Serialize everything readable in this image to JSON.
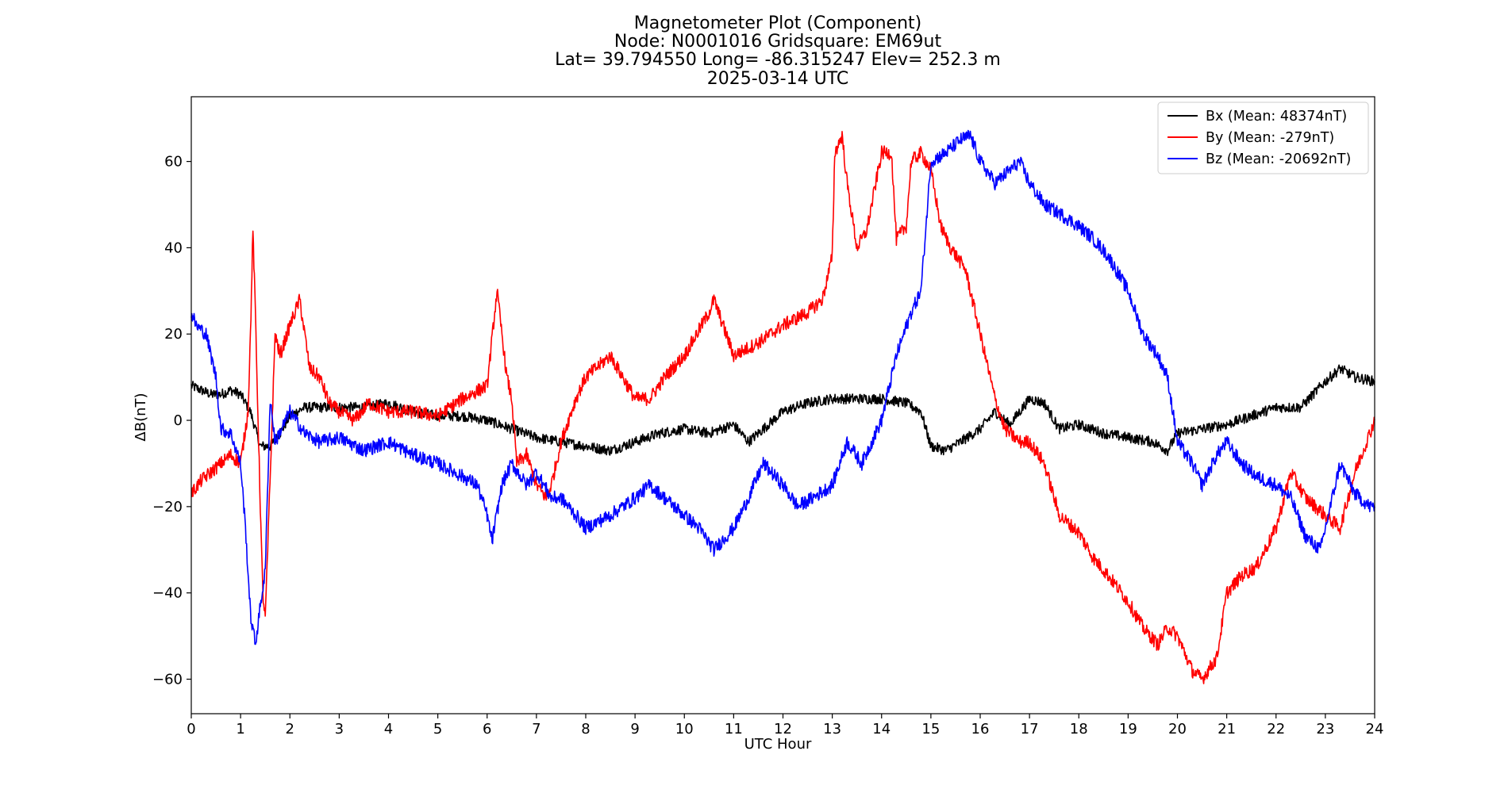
{
  "chart_data": {
    "type": "line",
    "title_lines": [
      "Magnetometer Plot (Component)",
      "Node:  N0001016     Gridsquare:  EM69ut",
      "Lat= 39.794550    Long= -86.315247    Elev= 252.3 m",
      "2025-03-14  UTC"
    ],
    "xlabel": "UTC Hour",
    "ylabel": "ΔB(nT)",
    "xlim": [
      0,
      24
    ],
    "ylim": [
      -68,
      75
    ],
    "xticks": [
      0,
      1,
      2,
      3,
      4,
      5,
      6,
      7,
      8,
      9,
      10,
      11,
      12,
      13,
      14,
      15,
      16,
      17,
      18,
      19,
      20,
      21,
      22,
      23,
      24
    ],
    "yticks": [
      -60,
      -40,
      -20,
      0,
      20,
      40,
      60
    ],
    "ytick_labels": [
      "−60",
      "−40",
      "−20",
      "0",
      "20",
      "40",
      "60"
    ],
    "grid": false,
    "legend_position": "top-right",
    "series": [
      {
        "name": "Bx (Mean: 48374nT)",
        "color": "#000000",
        "x": [
          0,
          0.2,
          0.4,
          0.6,
          0.8,
          1.0,
          1.2,
          1.4,
          1.6,
          1.8,
          2.0,
          2.3,
          2.6,
          3.0,
          3.5,
          4.0,
          4.5,
          5.0,
          5.5,
          6.0,
          6.5,
          7.0,
          7.5,
          8.0,
          8.5,
          9.0,
          9.5,
          10.0,
          10.5,
          11.0,
          11.3,
          11.6,
          12.0,
          12.5,
          13.0,
          13.5,
          14.0,
          14.5,
          14.8,
          15.0,
          15.3,
          15.6,
          16.0,
          16.3,
          16.6,
          17.0,
          17.3,
          17.6,
          18.0,
          18.5,
          19.0,
          19.5,
          19.8,
          20.0,
          20.5,
          21.0,
          21.5,
          22.0,
          22.5,
          23.0,
          23.3,
          23.6,
          24.0
        ],
        "y": [
          8,
          7,
          6,
          6,
          7,
          6,
          2,
          -6,
          -6,
          -3,
          1,
          3,
          3,
          3,
          3,
          4,
          2,
          1,
          1,
          0,
          -2,
          -4,
          -5,
          -6,
          -7,
          -5,
          -3,
          -2,
          -3,
          -1,
          -5,
          -2,
          2,
          4,
          5,
          5,
          5,
          4,
          2,
          -6,
          -7,
          -5,
          -2,
          2,
          -1,
          5,
          4,
          -2,
          -1,
          -3,
          -4,
          -5,
          -7,
          -3,
          -2,
          -1,
          1,
          3,
          3,
          9,
          12,
          10,
          9
        ]
      },
      {
        "name": "By (Mean: -279nT)",
        "color": "#ff0000",
        "x": [
          0,
          0.2,
          0.4,
          0.6,
          0.8,
          1.0,
          1.15,
          1.2,
          1.25,
          1.3,
          1.4,
          1.45,
          1.5,
          1.55,
          1.7,
          1.8,
          2.0,
          2.2,
          2.4,
          2.6,
          2.8,
          3.0,
          3.3,
          3.6,
          4.0,
          4.5,
          5.0,
          5.5,
          6.0,
          6.2,
          6.3,
          6.4,
          6.5,
          6.6,
          6.8,
          7.0,
          7.2,
          7.3,
          7.5,
          7.8,
          8.0,
          8.5,
          9.0,
          9.3,
          9.6,
          10.0,
          10.5,
          10.6,
          11.0,
          11.5,
          12.0,
          12.5,
          12.8,
          13.0,
          13.05,
          13.2,
          13.3,
          13.5,
          13.7,
          14.0,
          14.2,
          14.3,
          14.5,
          14.6,
          14.8,
          15.0,
          15.2,
          15.4,
          15.7,
          16.0,
          16.3,
          16.5,
          16.8,
          17.0,
          17.3,
          17.6,
          18.0,
          18.3,
          18.6,
          19.0,
          19.3,
          19.6,
          19.8,
          20.0,
          20.3,
          20.5,
          20.8,
          21.0,
          21.3,
          21.6,
          22.0,
          22.3,
          22.6,
          23.0,
          23.3,
          23.6,
          24.0
        ],
        "y": [
          -17,
          -14,
          -12,
          -10,
          -8,
          -10,
          2,
          20,
          44,
          25,
          -20,
          -40,
          -46,
          -30,
          20,
          15,
          22,
          28,
          12,
          10,
          4,
          2,
          0,
          4,
          2,
          2,
          1,
          5,
          8,
          30,
          20,
          10,
          5,
          -10,
          -8,
          -15,
          -18,
          -15,
          -5,
          5,
          10,
          15,
          5,
          5,
          10,
          15,
          25,
          28,
          15,
          18,
          22,
          25,
          28,
          38,
          62,
          66,
          55,
          40,
          44,
          62,
          62,
          42,
          45,
          60,
          62,
          58,
          45,
          40,
          35,
          20,
          5,
          -2,
          -5,
          -5,
          -10,
          -22,
          -26,
          -32,
          -36,
          -42,
          -48,
          -52,
          -48,
          -50,
          -58,
          -60,
          -55,
          -40,
          -36,
          -34,
          -25,
          -12,
          -18,
          -22,
          -25,
          -12,
          0
        ]
      },
      {
        "name": "Bz (Mean: -20692nT)",
        "color": "#0000ff",
        "x": [
          0,
          0.1,
          0.3,
          0.5,
          0.6,
          0.8,
          1.0,
          1.1,
          1.2,
          1.3,
          1.4,
          1.5,
          1.6,
          1.7,
          2.0,
          2.3,
          2.6,
          3.0,
          3.5,
          4.0,
          4.5,
          5.0,
          5.5,
          5.8,
          6.0,
          6.1,
          6.3,
          6.5,
          6.8,
          7.0,
          7.3,
          7.5,
          7.8,
          8.0,
          8.5,
          9.0,
          9.3,
          9.6,
          10.0,
          10.3,
          10.6,
          11.0,
          11.3,
          11.6,
          12.0,
          12.3,
          12.6,
          13.0,
          13.3,
          13.6,
          14.0,
          14.3,
          14.6,
          14.8,
          15.0,
          15.3,
          15.6,
          15.8,
          16.0,
          16.3,
          16.6,
          16.8,
          17.0,
          17.3,
          17.6,
          18.0,
          18.3,
          18.6,
          19.0,
          19.3,
          19.6,
          19.8,
          20.0,
          20.3,
          20.5,
          20.8,
          21.0,
          21.3,
          21.6,
          22.0,
          22.3,
          22.6,
          22.9,
          23.0,
          23.3,
          23.6,
          23.9,
          24.0
        ],
        "y": [
          25,
          22,
          20,
          10,
          -2,
          -3,
          -10,
          -25,
          -45,
          -52,
          -43,
          -35,
          5,
          -5,
          2,
          -3,
          -5,
          -4,
          -7,
          -5,
          -8,
          -10,
          -13,
          -15,
          -22,
          -28,
          -15,
          -10,
          -15,
          -12,
          -18,
          -18,
          -22,
          -25,
          -22,
          -18,
          -15,
          -18,
          -22,
          -25,
          -30,
          -25,
          -18,
          -10,
          -15,
          -20,
          -18,
          -15,
          -5,
          -10,
          0,
          15,
          25,
          30,
          60,
          62,
          65,
          66,
          60,
          55,
          58,
          60,
          55,
          50,
          48,
          45,
          42,
          38,
          30,
          20,
          15,
          10,
          -5,
          -10,
          -15,
          -8,
          -5,
          -10,
          -13,
          -15,
          -18,
          -27,
          -30,
          -25,
          -10,
          -17,
          -20,
          -20
        ]
      }
    ]
  }
}
